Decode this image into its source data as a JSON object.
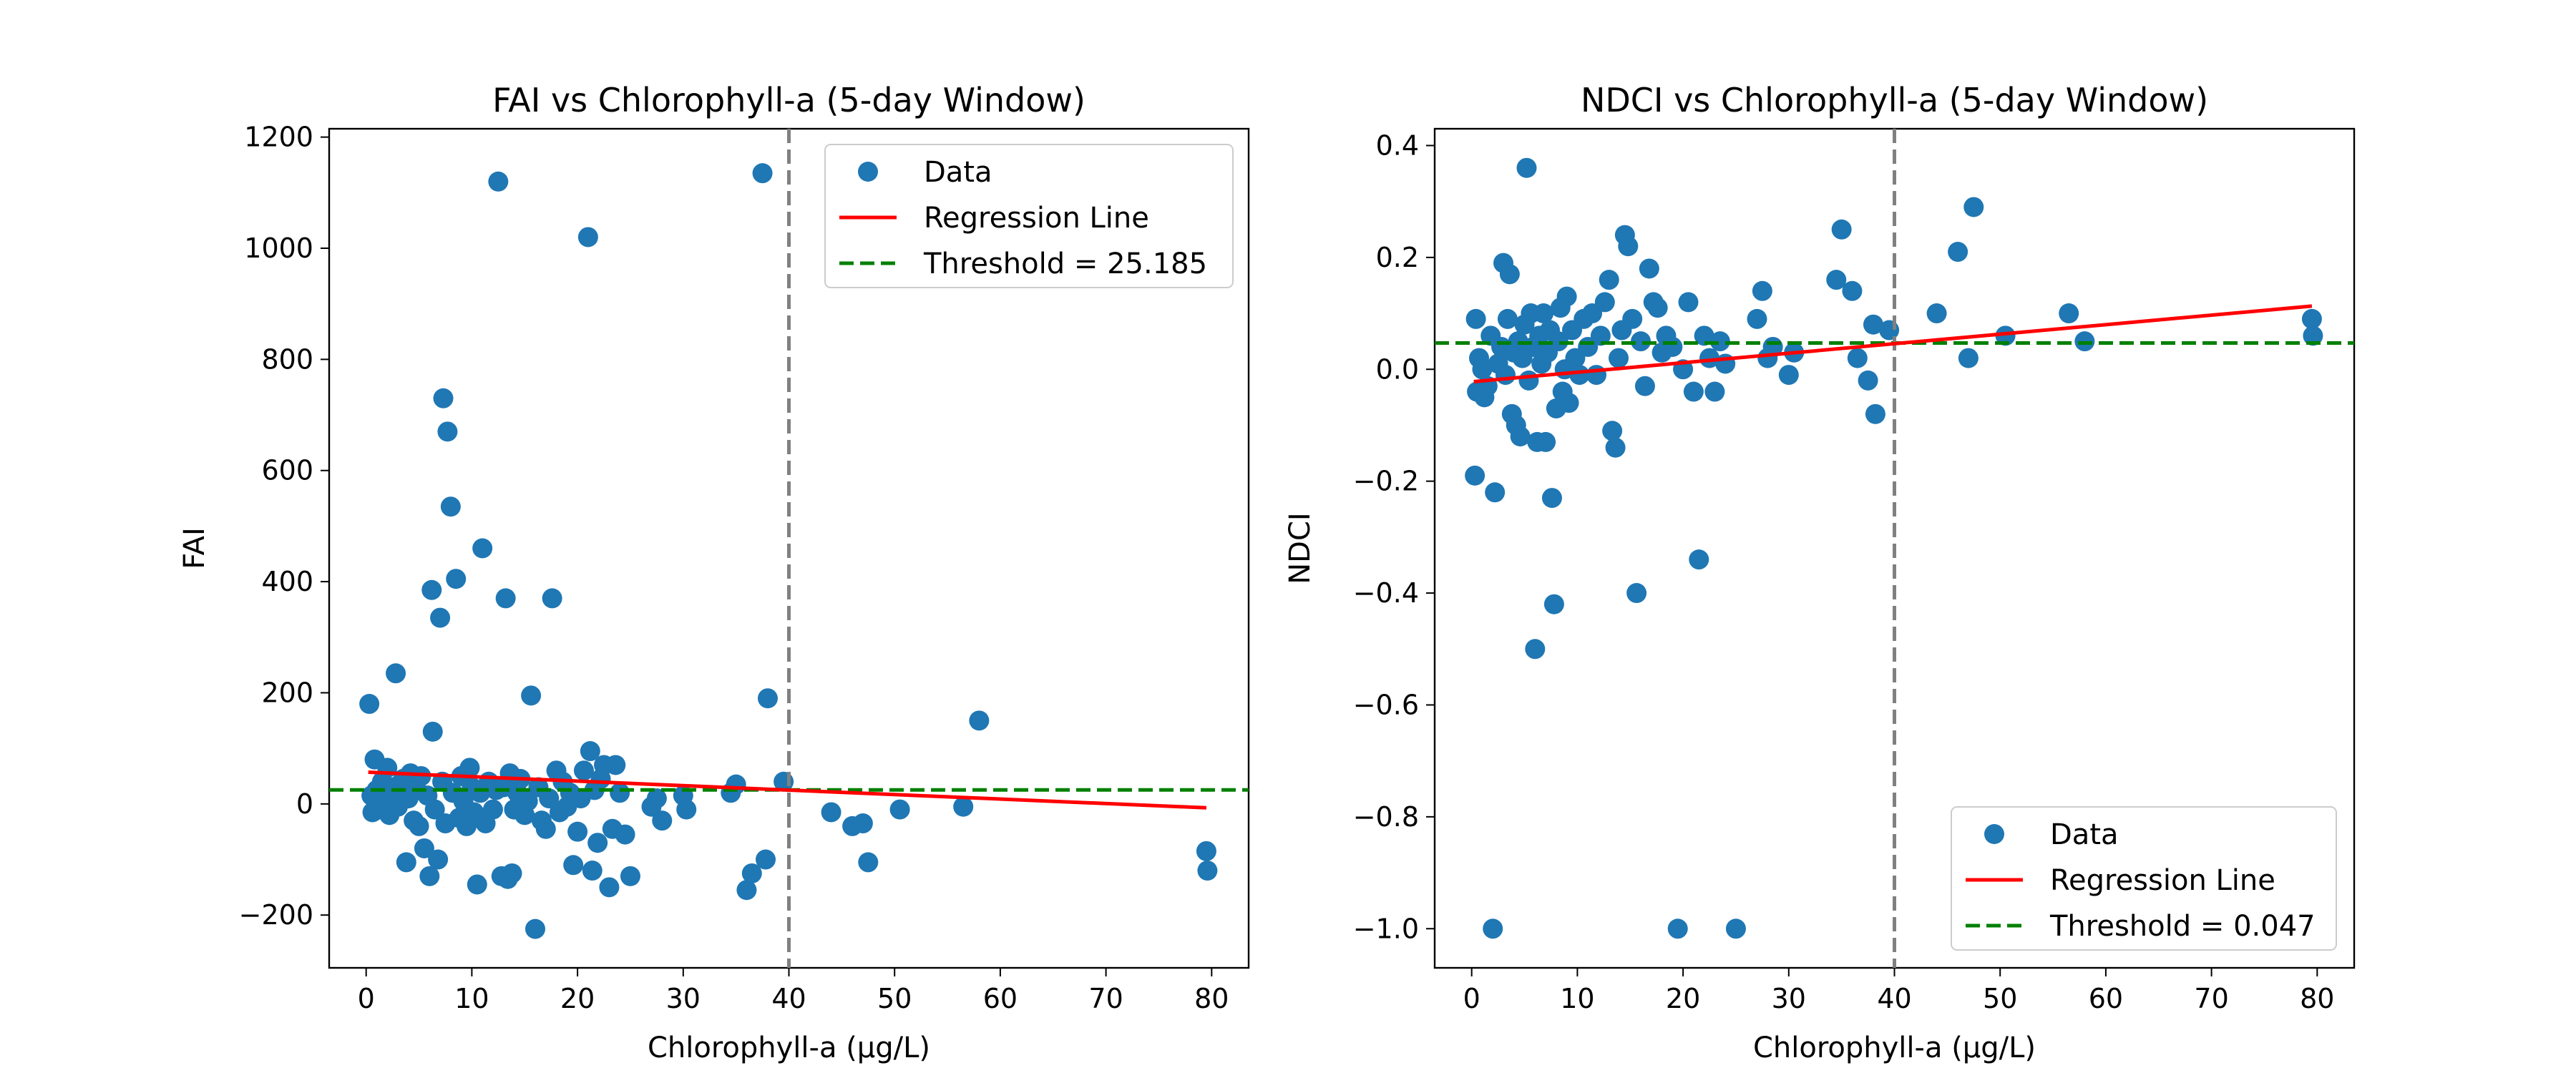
{
  "colors": {
    "data": "#1f77b4",
    "regression": "#ff0000",
    "threshold": "#008000",
    "vline": "#808080"
  },
  "chart_data": [
    {
      "type": "scatter",
      "title": "FAI vs Chlorophyll-a (5-day Window)",
      "xlabel": "Chlorophyll-a (µg/L)",
      "ylabel": "FAI",
      "xlim": [
        -3.5,
        83.5
      ],
      "ylim": [
        -295,
        1215
      ],
      "xticks": [
        0,
        10,
        20,
        30,
        40,
        50,
        60,
        70,
        80
      ],
      "yticks": [
        -200,
        0,
        200,
        400,
        600,
        800,
        1000,
        1200
      ],
      "xtick_labels": [
        "0",
        "10",
        "20",
        "30",
        "40",
        "50",
        "60",
        "70",
        "80"
      ],
      "ytick_labels": [
        "−200",
        "0",
        "200",
        "400",
        "600",
        "800",
        "1000",
        "1200"
      ],
      "legend": {
        "placement": "upper right",
        "entries": [
          "Data",
          "Regression Line",
          "Threshold = 25.185"
        ]
      },
      "threshold": 25.185,
      "vline_x": 40,
      "regression": {
        "x": [
          0.2,
          79.5
        ],
        "y": [
          57,
          -7
        ]
      },
      "points": [
        [
          0.3,
          180
        ],
        [
          0.5,
          15
        ],
        [
          0.6,
          -15
        ],
        [
          0.8,
          80
        ],
        [
          1.0,
          25
        ],
        [
          1.2,
          -10
        ],
        [
          1.5,
          40
        ],
        [
          1.8,
          5
        ],
        [
          2.0,
          65
        ],
        [
          2.2,
          -20
        ],
        [
          2.5,
          30
        ],
        [
          2.8,
          235
        ],
        [
          3.0,
          -5
        ],
        [
          3.2,
          20
        ],
        [
          3.5,
          45
        ],
        [
          3.8,
          -105
        ],
        [
          4.0,
          10
        ],
        [
          4.2,
          55
        ],
        [
          4.5,
          -30
        ],
        [
          4.8,
          25
        ],
        [
          5.0,
          -40
        ],
        [
          5.2,
          50
        ],
        [
          5.5,
          -80
        ],
        [
          5.8,
          15
        ],
        [
          6.0,
          -130
        ],
        [
          6.2,
          385
        ],
        [
          6.3,
          130
        ],
        [
          6.5,
          -10
        ],
        [
          6.8,
          -100
        ],
        [
          7.0,
          335
        ],
        [
          7.2,
          40
        ],
        [
          7.3,
          730
        ],
        [
          7.5,
          -35
        ],
        [
          7.7,
          670
        ],
        [
          8.0,
          535
        ],
        [
          8.2,
          20
        ],
        [
          8.5,
          405
        ],
        [
          8.8,
          -25
        ],
        [
          9.0,
          50
        ],
        [
          9.2,
          5
        ],
        [
          9.5,
          -40
        ],
        [
          9.8,
          65
        ],
        [
          10.0,
          30
        ],
        [
          10.2,
          -15
        ],
        [
          10.5,
          -145
        ],
        [
          10.8,
          20
        ],
        [
          11.0,
          460
        ],
        [
          11.3,
          -35
        ],
        [
          11.6,
          40
        ],
        [
          12.0,
          -10
        ],
        [
          12.3,
          25
        ],
        [
          12.5,
          1120
        ],
        [
          12.8,
          -130
        ],
        [
          13.0,
          30
        ],
        [
          13.2,
          370
        ],
        [
          13.4,
          -135
        ],
        [
          13.6,
          55
        ],
        [
          13.8,
          -125
        ],
        [
          14.0,
          -10
        ],
        [
          14.3,
          20
        ],
        [
          14.6,
          45
        ],
        [
          15.0,
          -20
        ],
        [
          15.3,
          5
        ],
        [
          15.6,
          195
        ],
        [
          16.0,
          -225
        ],
        [
          16.3,
          30
        ],
        [
          16.6,
          -30
        ],
        [
          17.0,
          -45
        ],
        [
          17.3,
          10
        ],
        [
          17.6,
          370
        ],
        [
          18.0,
          60
        ],
        [
          18.3,
          -15
        ],
        [
          18.6,
          40
        ],
        [
          19.0,
          -5
        ],
        [
          19.3,
          20
        ],
        [
          19.6,
          -110
        ],
        [
          20.0,
          -50
        ],
        [
          20.3,
          10
        ],
        [
          20.6,
          60
        ],
        [
          21.0,
          1020
        ],
        [
          21.2,
          95
        ],
        [
          21.4,
          -120
        ],
        [
          21.6,
          25
        ],
        [
          21.9,
          -70
        ],
        [
          22.2,
          45
        ],
        [
          22.5,
          70
        ],
        [
          23.0,
          -150
        ],
        [
          23.3,
          -45
        ],
        [
          23.6,
          70
        ],
        [
          24.0,
          20
        ],
        [
          24.5,
          -55
        ],
        [
          25.0,
          -130
        ],
        [
          27.0,
          -5
        ],
        [
          27.5,
          10
        ],
        [
          28.0,
          -30
        ],
        [
          30.0,
          15
        ],
        [
          30.3,
          -10
        ],
        [
          34.5,
          20
        ],
        [
          35.0,
          35
        ],
        [
          36.0,
          -155
        ],
        [
          36.5,
          -125
        ],
        [
          37.5,
          1135
        ],
        [
          37.8,
          -100
        ],
        [
          38.0,
          190
        ],
        [
          39.5,
          40
        ],
        [
          44.0,
          -15
        ],
        [
          46.0,
          -40
        ],
        [
          47.0,
          -35
        ],
        [
          47.5,
          -105
        ],
        [
          50.5,
          -10
        ],
        [
          56.5,
          -5
        ],
        [
          58.0,
          150
        ],
        [
          79.5,
          -85
        ],
        [
          79.6,
          -120
        ]
      ]
    },
    {
      "type": "scatter",
      "title": "NDCI vs Chlorophyll-a (5-day Window)",
      "xlabel": "Chlorophyll-a (µg/L)",
      "ylabel": "NDCI",
      "xlim": [
        -3.5,
        83.5
      ],
      "ylim": [
        -1.07,
        0.43
      ],
      "xticks": [
        0,
        10,
        20,
        30,
        40,
        50,
        60,
        70,
        80
      ],
      "yticks": [
        -1.0,
        -0.8,
        -0.6,
        -0.4,
        -0.2,
        0.0,
        0.2,
        0.4
      ],
      "xtick_labels": [
        "0",
        "10",
        "20",
        "30",
        "40",
        "50",
        "60",
        "70",
        "80"
      ],
      "ytick_labels": [
        "−1.0",
        "−0.8",
        "−0.6",
        "−0.4",
        "−0.2",
        "0.0",
        "0.2",
        "0.4"
      ],
      "legend": {
        "placement": "lower right",
        "entries": [
          "Data",
          "Regression Line",
          "Threshold = 0.047"
        ]
      },
      "threshold": 0.047,
      "vline_x": 40,
      "regression": {
        "x": [
          0.2,
          79.5
        ],
        "y": [
          -0.022,
          0.113
        ]
      },
      "points": [
        [
          0.3,
          -0.19
        ],
        [
          0.4,
          0.09
        ],
        [
          0.5,
          -0.04
        ],
        [
          0.7,
          0.02
        ],
        [
          1.0,
          0.0
        ],
        [
          1.2,
          -0.05
        ],
        [
          1.5,
          -0.03
        ],
        [
          1.8,
          0.06
        ],
        [
          2.0,
          -1.0
        ],
        [
          2.2,
          -0.22
        ],
        [
          2.5,
          0.01
        ],
        [
          2.8,
          0.04
        ],
        [
          3.0,
          0.19
        ],
        [
          3.2,
          -0.01
        ],
        [
          3.4,
          0.09
        ],
        [
          3.6,
          0.17
        ],
        [
          3.8,
          -0.08
        ],
        [
          4.0,
          0.03
        ],
        [
          4.2,
          -0.1
        ],
        [
          4.4,
          0.05
        ],
        [
          4.6,
          -0.12
        ],
        [
          4.8,
          0.02
        ],
        [
          5.0,
          0.08
        ],
        [
          5.2,
          0.36
        ],
        [
          5.4,
          -0.02
        ],
        [
          5.6,
          0.1
        ],
        [
          5.8,
          0.04
        ],
        [
          6.0,
          -0.5
        ],
        [
          6.2,
          -0.13
        ],
        [
          6.4,
          0.06
        ],
        [
          6.6,
          0.01
        ],
        [
          6.8,
          0.1
        ],
        [
          7.0,
          -0.13
        ],
        [
          7.2,
          0.03
        ],
        [
          7.4,
          0.07
        ],
        [
          7.6,
          -0.23
        ],
        [
          7.8,
          -0.42
        ],
        [
          8.0,
          -0.07
        ],
        [
          8.2,
          0.05
        ],
        [
          8.4,
          0.11
        ],
        [
          8.6,
          -0.04
        ],
        [
          8.8,
          0.0
        ],
        [
          9.0,
          0.13
        ],
        [
          9.2,
          -0.06
        ],
        [
          9.5,
          0.07
        ],
        [
          9.8,
          0.02
        ],
        [
          10.2,
          -0.01
        ],
        [
          10.6,
          0.09
        ],
        [
          11.0,
          0.04
        ],
        [
          11.4,
          0.1
        ],
        [
          11.8,
          -0.01
        ],
        [
          12.2,
          0.06
        ],
        [
          12.6,
          0.12
        ],
        [
          13.0,
          0.16
        ],
        [
          13.3,
          -0.11
        ],
        [
          13.6,
          -0.14
        ],
        [
          13.9,
          0.02
        ],
        [
          14.2,
          0.07
        ],
        [
          14.5,
          0.24
        ],
        [
          14.8,
          0.22
        ],
        [
          15.2,
          0.09
        ],
        [
          15.6,
          -0.4
        ],
        [
          16.0,
          0.05
        ],
        [
          16.4,
          -0.03
        ],
        [
          16.8,
          0.18
        ],
        [
          17.2,
          0.12
        ],
        [
          17.6,
          0.11
        ],
        [
          18.0,
          0.03
        ],
        [
          18.4,
          0.06
        ],
        [
          19.0,
          0.04
        ],
        [
          19.5,
          -1.0
        ],
        [
          20.0,
          0.0
        ],
        [
          20.5,
          0.12
        ],
        [
          21.0,
          -0.04
        ],
        [
          21.5,
          -0.34
        ],
        [
          22.0,
          0.06
        ],
        [
          22.5,
          0.02
        ],
        [
          23.0,
          -0.04
        ],
        [
          23.5,
          0.05
        ],
        [
          24.0,
          0.01
        ],
        [
          25.0,
          -1.0
        ],
        [
          27.0,
          0.09
        ],
        [
          27.5,
          0.14
        ],
        [
          28.0,
          0.02
        ],
        [
          28.5,
          0.04
        ],
        [
          30.0,
          -0.01
        ],
        [
          30.5,
          0.03
        ],
        [
          34.5,
          0.16
        ],
        [
          35.0,
          0.25
        ],
        [
          36.0,
          0.14
        ],
        [
          36.5,
          0.02
        ],
        [
          37.5,
          -0.02
        ],
        [
          38.0,
          0.08
        ],
        [
          38.2,
          -0.08
        ],
        [
          39.5,
          0.07
        ],
        [
          44.0,
          0.1
        ],
        [
          46.0,
          0.21
        ],
        [
          47.0,
          0.02
        ],
        [
          47.5,
          0.29
        ],
        [
          50.5,
          0.06
        ],
        [
          56.5,
          0.1
        ],
        [
          58.0,
          0.05
        ],
        [
          79.5,
          0.09
        ],
        [
          79.6,
          0.06
        ]
      ]
    }
  ]
}
